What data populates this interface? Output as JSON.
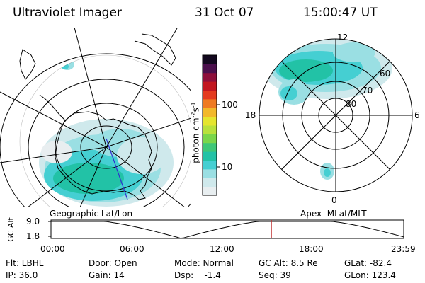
{
  "header": {
    "instrument": "Ultraviolet Imager",
    "date": "31 Oct 07",
    "time": "15:00:47 UT"
  },
  "left_panel": {
    "caption": "Geographic Lat/Lon"
  },
  "right_panel": {
    "caption": "Apex  MLat/MLT",
    "mlt_labels": {
      "top": "12",
      "left": "18",
      "right": "6",
      "bottom": "0"
    },
    "lat_labels": [
      "60",
      "70",
      "80"
    ]
  },
  "colorbar": {
    "label": "photon cm",
    "label_sup1": "-2",
    "label_mid": "s",
    "label_sup2": "-1",
    "tick_100": "100",
    "tick_10": "10",
    "colors": [
      "#e8eef0",
      "#cfe9ec",
      "#9adfe3",
      "#45cfd2",
      "#22c2a6",
      "#3ec777",
      "#7ad64a",
      "#b9e13c",
      "#e5e52f",
      "#f2b82a",
      "#ef7a22",
      "#e43a1f",
      "#c21620",
      "#8e0f3b",
      "#4a0f4c",
      "#12081e"
    ]
  },
  "altitude_plot": {
    "axis_label": "GC Alt",
    "y_ticks": [
      "9.0",
      "1.8"
    ],
    "x_ticks": [
      "00:00",
      "06:00",
      "12:00",
      "18:00",
      "23:59"
    ],
    "current_time_fraction": 0.625,
    "line_color": "#000000",
    "marker_color": "#c03030"
  },
  "info": {
    "filter": "Flt: LBHL",
    "ip": "IP: 36.0",
    "door": "Door: Open",
    "gain": "Gain: 14",
    "mode": "Mode: Normal",
    "dsp": "Dsp:    -1.4",
    "gc_alt": "GC Alt: 8.5 Re",
    "seq": "Seq: 39",
    "glat": "GLat: -82.4",
    "glon": "GLon: 123.4"
  }
}
